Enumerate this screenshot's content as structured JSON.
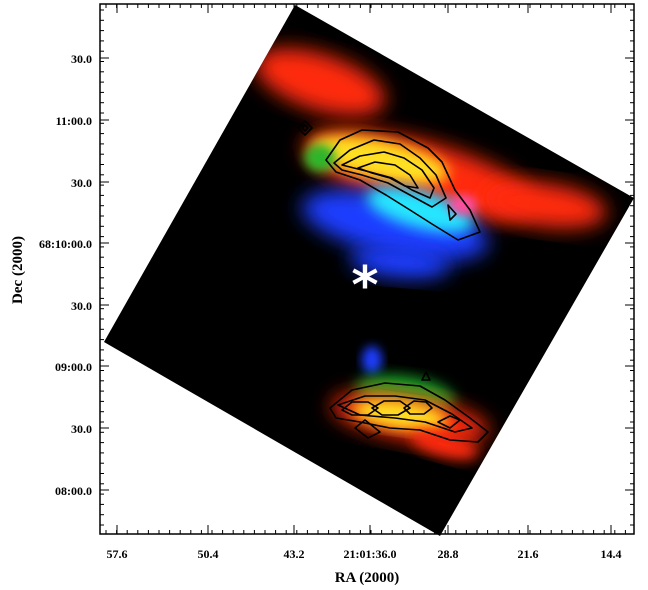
{
  "figure": {
    "xlabel": "RA (2000)",
    "ylabel": "Dec (2000)",
    "x_ticks": [
      "57.6",
      "50.4",
      "43.2",
      "21:01:36.0",
      "28.8",
      "21.6",
      "14.4"
    ],
    "y_ticks": [
      "30.0",
      "11:00.0",
      "30.0",
      "68:10:00.0",
      "30.0",
      "09:00.0",
      "30.0",
      "08:00.0"
    ],
    "marker": "*",
    "colors": {
      "background": "#ffffff",
      "field": "#000000",
      "red": "#ff2a10",
      "yellow": "#ffe020",
      "blue": "#1c3cff",
      "cyan": "#25e6ff",
      "green": "#1fb02c",
      "contour": "#000000",
      "marker": "#ffffff"
    }
  }
}
